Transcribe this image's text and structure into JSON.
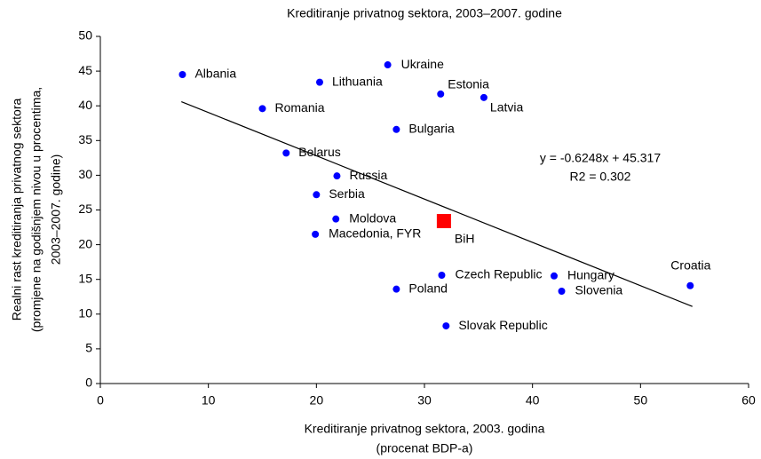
{
  "chart_data": {
    "type": "scatter",
    "title": "Kreditiranje privatnog sektora, 2003–2007. godine",
    "x_label": [
      "Kreditiranje privatnog sektora, 2003. godina",
      "(procenat BDP-a)"
    ],
    "y_label": [
      "Realni rast kreditiranja privatnog sektora",
      "(promjene na godišnjem nivou u procentima,",
      "2003–2007. godine)"
    ],
    "series": [
      {
        "color": "#0000ff",
        "marker": "circle",
        "labels": [
          "Albania",
          "Lithuania",
          "Ukraine",
          "Estonia",
          "Latvia",
          "Romania",
          "Bulgaria",
          "Belarus",
          "Russia",
          "Serbia",
          "Moldova",
          "Macedonia, FYR",
          "Czech Republic",
          "Hungary",
          "Slovenia",
          "Croatia",
          "Poland",
          "Slovak Republic"
        ],
        "x": [
          7.6,
          20.3,
          26.6,
          31.5,
          35.5,
          15.0,
          27.4,
          17.2,
          21.9,
          20.0,
          21.8,
          19.9,
          31.6,
          42.0,
          42.7,
          54.6,
          27.4,
          32.0
        ],
        "values": [
          44.5,
          43.4,
          45.9,
          41.7,
          41.2,
          39.6,
          36.6,
          33.2,
          29.9,
          27.2,
          23.7,
          21.5,
          15.6,
          15.5,
          13.3,
          14.1,
          13.6,
          8.3
        ]
      },
      {
        "color": "#ff0000",
        "marker": "square",
        "labels": [
          "BiH"
        ],
        "x": [
          31.8
        ],
        "values": [
          23.4
        ]
      }
    ],
    "trendline": {
      "color": "#000000",
      "x": [
        7.5,
        54.8
      ],
      "values": [
        40.6,
        11.1
      ]
    },
    "annotations": [
      "y = -0.6248x + 45.317",
      "R2 = 0.302"
    ],
    "xlim": [
      0,
      60
    ],
    "xticks": [
      0,
      10,
      20,
      30,
      40,
      50,
      60
    ],
    "ylim": [
      0,
      50
    ],
    "yticks": [
      0,
      5,
      10,
      15,
      20,
      25,
      30,
      35,
      40,
      45,
      50
    ],
    "grid": false
  }
}
